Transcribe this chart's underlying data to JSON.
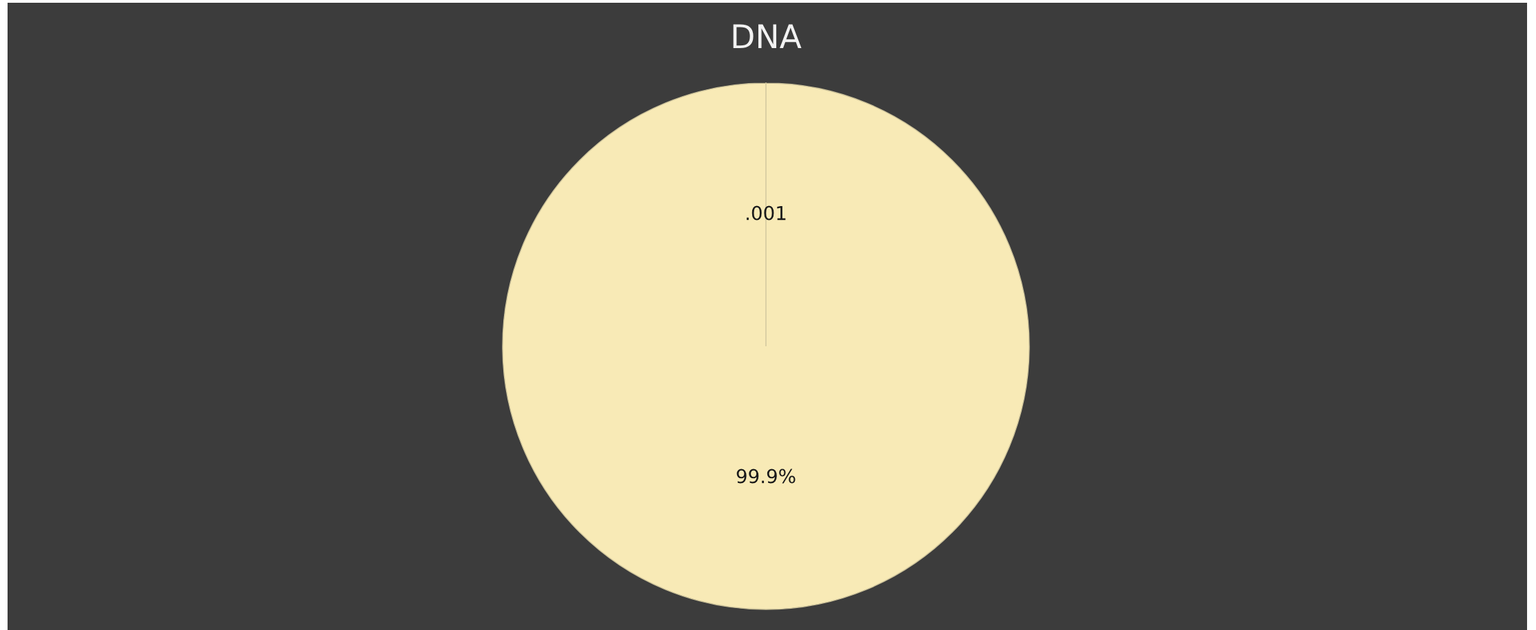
{
  "chart_data": {
    "type": "pie",
    "title": "DNA",
    "categories": [
      null,
      null
    ],
    "values": [
      0.001,
      99.9
    ],
    "value_labels": [
      ".001",
      "99.9%"
    ],
    "colors": [
      "#fcefc2",
      "#f8eab6"
    ]
  }
}
